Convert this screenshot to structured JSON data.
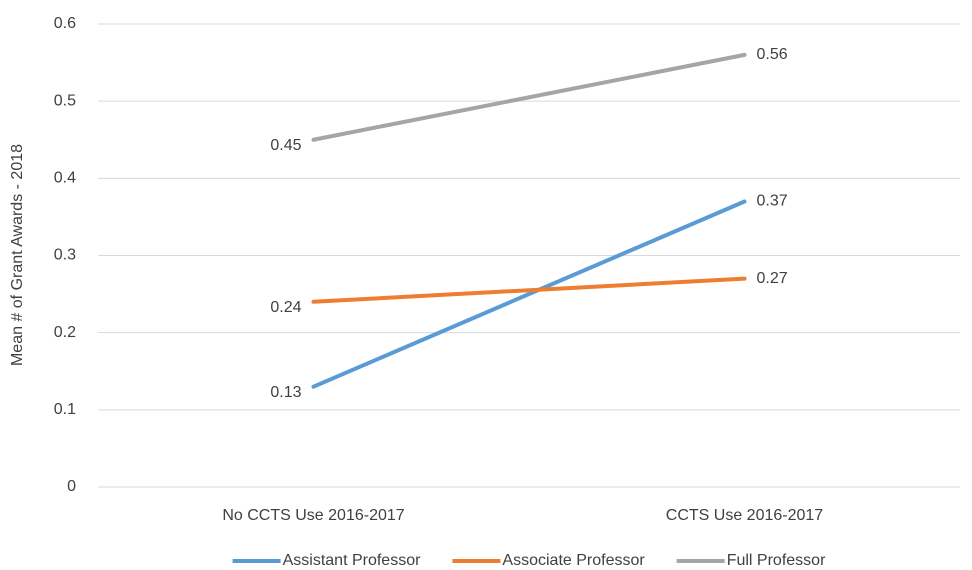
{
  "chart_data": {
    "type": "line",
    "y_label": "Mean # of Grant Awards - 2018",
    "categories": [
      "No CCTS Use 2016-2017",
      "CCTS Use 2016-2017"
    ],
    "series": [
      {
        "name": "Assistant Professor",
        "color": "#5b9bd5",
        "values": [
          0.13,
          0.37
        ]
      },
      {
        "name": "Associate Professor",
        "color": "#ed7d31",
        "values": [
          0.24,
          0.27
        ]
      },
      {
        "name": "Full Professor",
        "color": "#a5a5a5",
        "values": [
          0.45,
          0.56
        ]
      }
    ],
    "ylim": [
      0,
      0.6
    ],
    "yticks": [
      0,
      0.1,
      0.2,
      0.3,
      0.4,
      0.5,
      0.6
    ],
    "grid": true,
    "legend": "bottom"
  }
}
